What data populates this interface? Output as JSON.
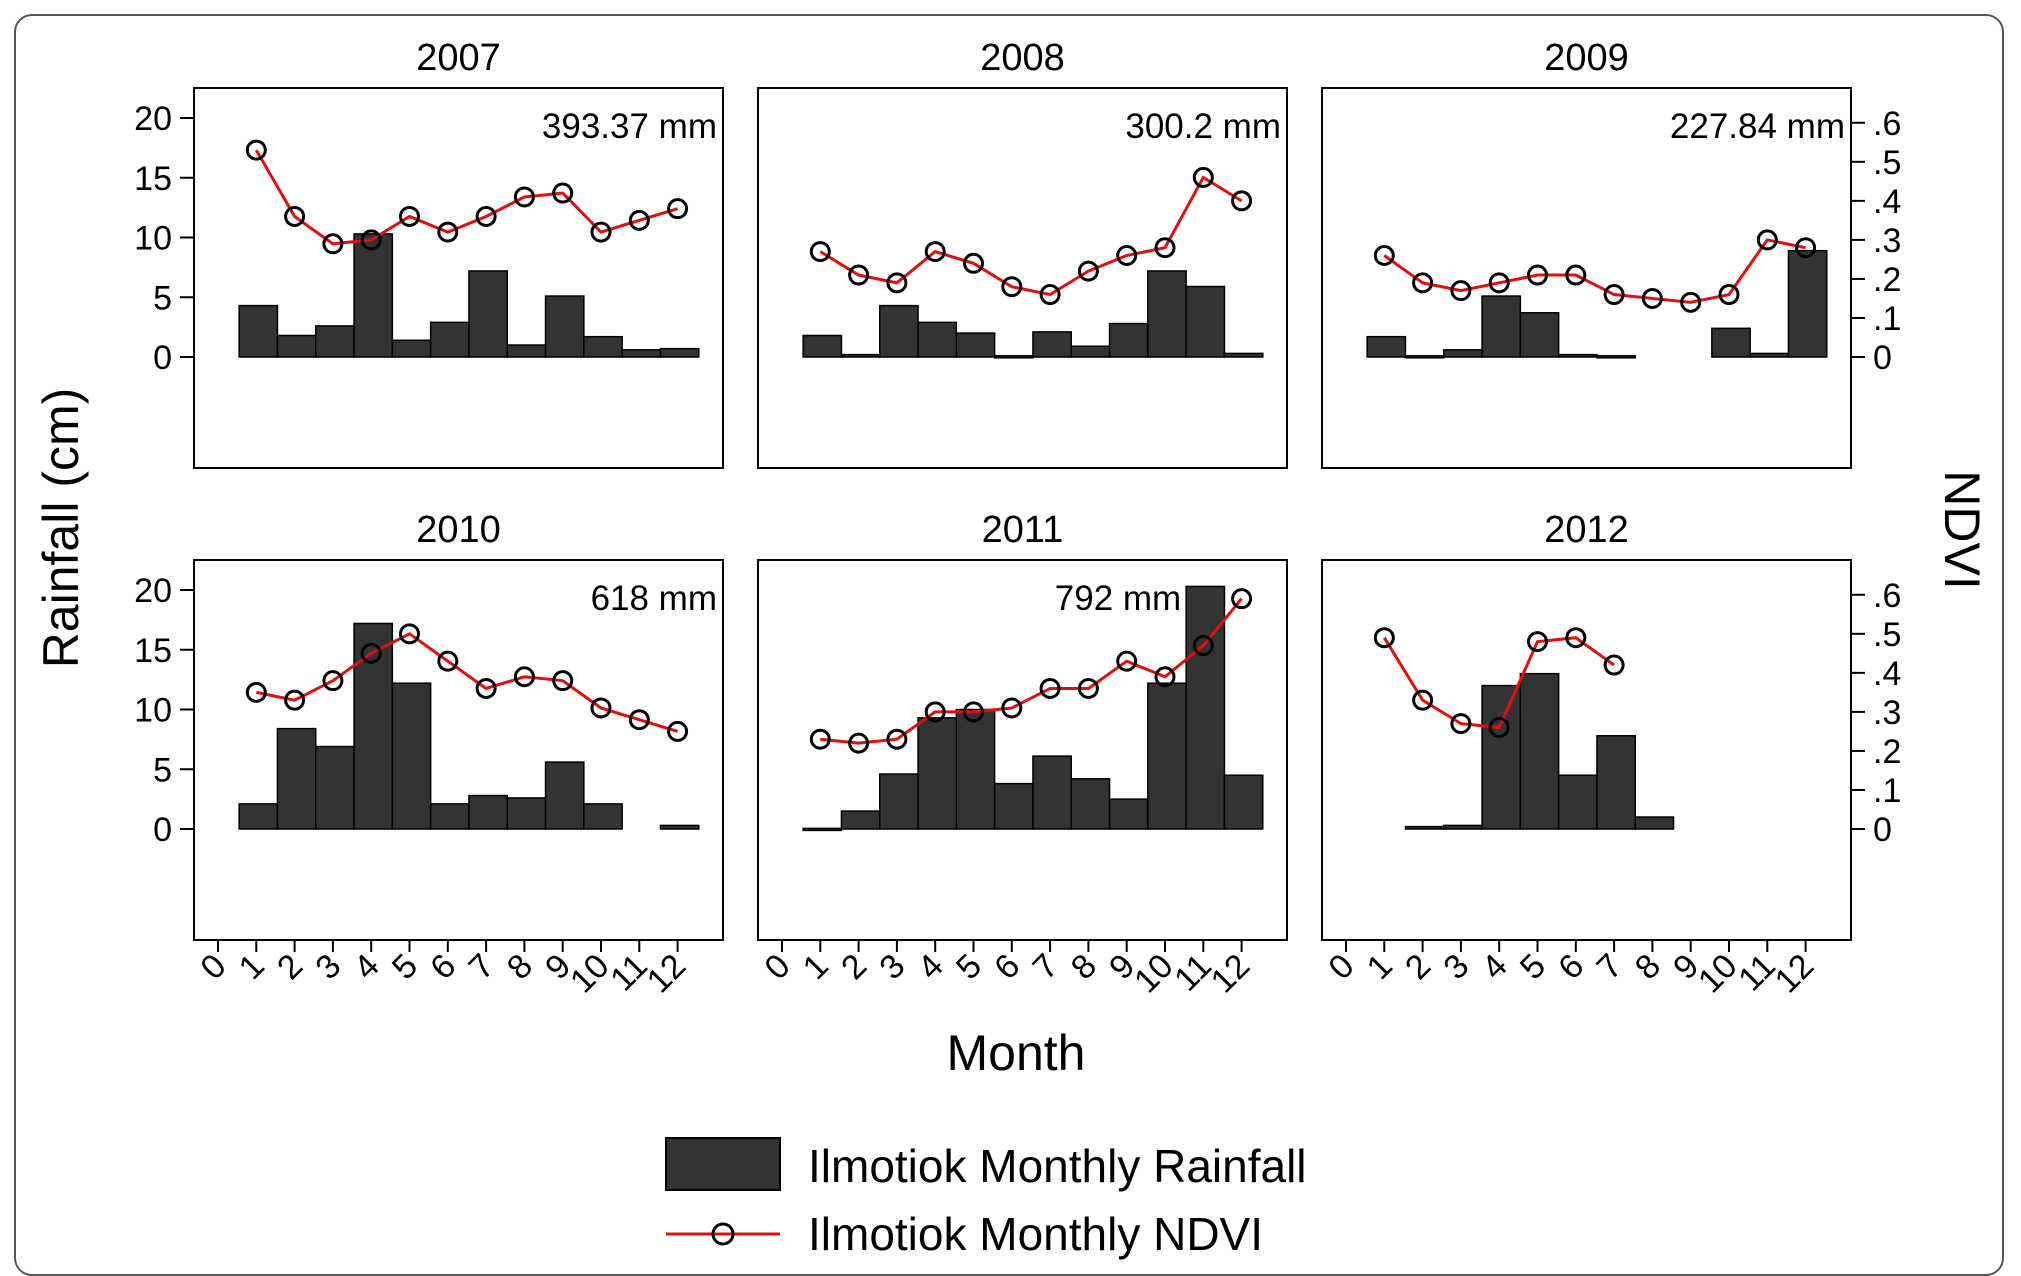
{
  "figure": {
    "y_left_label": "Rainfall (cm)",
    "y_right_label": "NDVI",
    "x_label": "Month",
    "legend": {
      "rainfall_label": "Ilmotiok Monthly Rainfall",
      "ndvi_label": "Ilmotiok Monthly NDVI"
    }
  },
  "colors": {
    "bar": "#333333",
    "line": "#e01010",
    "marker_edge": "#000000"
  },
  "chart_data": [
    {
      "type": "bar",
      "title": "2007",
      "annotation": "393.37 mm",
      "xlim": [
        0,
        12
      ],
      "ylim": [
        0,
        20
      ],
      "y2lim": [
        0,
        0.6
      ],
      "x_ticks": [
        "0",
        "1",
        "2",
        "3",
        "4",
        "5",
        "6",
        "7",
        "8",
        "9",
        "10",
        "11",
        "12"
      ],
      "y_ticks": [
        "0",
        "5",
        "10",
        "15",
        "20"
      ],
      "y2_ticks": [
        "0",
        ".1",
        ".2",
        ".3",
        ".4",
        ".5",
        ".6"
      ],
      "series": [
        {
          "name": "Ilmotiok Monthly Rainfall",
          "axis": "left",
          "type": "bar",
          "x": [
            1,
            2,
            3,
            4,
            5,
            6,
            7,
            8,
            9,
            10,
            11,
            12
          ],
          "values": [
            4.3,
            1.8,
            2.6,
            10.3,
            1.4,
            2.9,
            7.2,
            1.0,
            5.1,
            1.7,
            0.6,
            0.7
          ]
        },
        {
          "name": "Ilmotiok Monthly NDVI",
          "axis": "right",
          "type": "line",
          "x": [
            1,
            2,
            3,
            4,
            5,
            6,
            7,
            8,
            9,
            10,
            11,
            12
          ],
          "values": [
            0.53,
            0.36,
            0.29,
            0.3,
            0.36,
            0.32,
            0.36,
            0.41,
            0.42,
            0.32,
            0.35,
            0.38
          ]
        }
      ]
    },
    {
      "type": "bar",
      "title": "2008",
      "annotation": "300.2 mm",
      "xlim": [
        0,
        12
      ],
      "ylim": [
        0,
        20
      ],
      "y2lim": [
        0,
        0.6
      ],
      "x_ticks": [
        "0",
        "1",
        "2",
        "3",
        "4",
        "5",
        "6",
        "7",
        "8",
        "9",
        "10",
        "11",
        "12"
      ],
      "y_ticks": [
        "0",
        "5",
        "10",
        "15",
        "20"
      ],
      "y2_ticks": [
        "0",
        ".1",
        ".2",
        ".3",
        ".4",
        ".5",
        ".6"
      ],
      "series": [
        {
          "name": "Ilmotiok Monthly Rainfall",
          "axis": "left",
          "type": "bar",
          "x": [
            1,
            2,
            3,
            4,
            5,
            6,
            7,
            8,
            9,
            10,
            11,
            12
          ],
          "values": [
            1.8,
            0.2,
            4.3,
            2.9,
            2.0,
            0.1,
            2.1,
            0.9,
            2.8,
            7.2,
            5.9,
            0.3
          ]
        },
        {
          "name": "Ilmotiok Monthly NDVI",
          "axis": "right",
          "type": "line",
          "x": [
            1,
            2,
            3,
            4,
            5,
            6,
            7,
            8,
            9,
            10,
            11,
            12
          ],
          "values": [
            0.27,
            0.21,
            0.19,
            0.27,
            0.24,
            0.18,
            0.16,
            0.22,
            0.26,
            0.28,
            0.46,
            0.4
          ]
        }
      ]
    },
    {
      "type": "bar",
      "title": "2009",
      "annotation": "227.84 mm",
      "xlim": [
        0,
        12
      ],
      "ylim": [
        0,
        20
      ],
      "y2lim": [
        0,
        0.6
      ],
      "x_ticks": [
        "0",
        "1",
        "2",
        "3",
        "4",
        "5",
        "6",
        "7",
        "8",
        "9",
        "10",
        "11",
        "12"
      ],
      "y_ticks": [
        "0",
        "5",
        "10",
        "15",
        "20"
      ],
      "y2_ticks": [
        "0",
        ".1",
        ".2",
        ".3",
        ".4",
        ".5",
        ".6"
      ],
      "series": [
        {
          "name": "Ilmotiok Monthly Rainfall",
          "axis": "left",
          "type": "bar",
          "x": [
            1,
            2,
            3,
            4,
            5,
            6,
            7,
            8,
            9,
            10,
            11,
            12
          ],
          "values": [
            1.7,
            0.1,
            0.6,
            5.1,
            3.7,
            0.2,
            0.1,
            0,
            0,
            2.4,
            0.3,
            8.9
          ]
        },
        {
          "name": "Ilmotiok Monthly NDVI",
          "axis": "right",
          "type": "line",
          "x": [
            1,
            2,
            3,
            4,
            5,
            6,
            7,
            8,
            9,
            10,
            11,
            12
          ],
          "values": [
            0.26,
            0.19,
            0.17,
            0.19,
            0.21,
            0.21,
            0.16,
            0.15,
            0.14,
            0.16,
            0.3,
            0.28
          ]
        }
      ]
    },
    {
      "type": "bar",
      "title": "2010",
      "annotation": "618 mm",
      "xlim": [
        0,
        12
      ],
      "ylim": [
        0,
        20
      ],
      "y2lim": [
        0,
        0.6
      ],
      "x_ticks": [
        "0",
        "1",
        "2",
        "3",
        "4",
        "5",
        "6",
        "7",
        "8",
        "9",
        "10",
        "11",
        "12"
      ],
      "y_ticks": [
        "0",
        "5",
        "10",
        "15",
        "20"
      ],
      "y2_ticks": [
        "0",
        ".1",
        ".2",
        ".3",
        ".4",
        ".5",
        ".6"
      ],
      "series": [
        {
          "name": "Ilmotiok Monthly Rainfall",
          "axis": "left",
          "type": "bar",
          "x": [
            1,
            2,
            3,
            4,
            5,
            6,
            7,
            8,
            9,
            10,
            11,
            12
          ],
          "values": [
            2.1,
            8.4,
            6.9,
            17.2,
            12.2,
            2.1,
            2.8,
            2.6,
            5.6,
            2.1,
            0,
            0.3
          ]
        },
        {
          "name": "Ilmotiok Monthly NDVI",
          "axis": "right",
          "type": "line",
          "x": [
            1,
            2,
            3,
            4,
            5,
            6,
            7,
            8,
            9,
            10,
            11,
            12
          ],
          "values": [
            0.35,
            0.33,
            0.38,
            0.45,
            0.5,
            0.43,
            0.36,
            0.39,
            0.38,
            0.31,
            0.28,
            0.25
          ]
        }
      ]
    },
    {
      "type": "bar",
      "title": "2011",
      "annotation": "792 mm",
      "xlim": [
        0,
        12
      ],
      "ylim": [
        0,
        20
      ],
      "y2lim": [
        0,
        0.6
      ],
      "x_ticks": [
        "0",
        "1",
        "2",
        "3",
        "4",
        "5",
        "6",
        "7",
        "8",
        "9",
        "10",
        "11",
        "12"
      ],
      "y_ticks": [
        "0",
        "5",
        "10",
        "15",
        "20"
      ],
      "y2_ticks": [
        "0",
        ".1",
        ".2",
        ".3",
        ".4",
        ".5",
        ".6"
      ],
      "series": [
        {
          "name": "Ilmotiok Monthly Rainfall",
          "axis": "left",
          "type": "bar",
          "x": [
            1,
            2,
            3,
            4,
            5,
            6,
            7,
            8,
            9,
            10,
            11,
            12
          ],
          "values": [
            0.05,
            1.5,
            4.6,
            9.3,
            10.0,
            3.8,
            6.1,
            4.2,
            2.5,
            12.2,
            20.3,
            4.5
          ]
        },
        {
          "name": "Ilmotiok Monthly NDVI",
          "axis": "right",
          "type": "line",
          "x": [
            1,
            2,
            3,
            4,
            5,
            6,
            7,
            8,
            9,
            10,
            11,
            12
          ],
          "values": [
            0.23,
            0.22,
            0.23,
            0.3,
            0.3,
            0.31,
            0.36,
            0.36,
            0.43,
            0.39,
            0.47,
            0.59
          ]
        }
      ]
    },
    {
      "type": "bar",
      "title": "2012",
      "annotation": "",
      "xlim": [
        0,
        12
      ],
      "ylim": [
        0,
        20
      ],
      "y2lim": [
        0,
        0.6
      ],
      "x_ticks": [
        "0",
        "1",
        "2",
        "3",
        "4",
        "5",
        "6",
        "7",
        "8",
        "9",
        "10",
        "11",
        "12"
      ],
      "y_ticks": [
        "0",
        "5",
        "10",
        "15",
        "20"
      ],
      "y2_ticks": [
        "0",
        ".1",
        ".2",
        ".3",
        ".4",
        ".5",
        ".6"
      ],
      "series": [
        {
          "name": "Ilmotiok Monthly Rainfall",
          "axis": "left",
          "type": "bar",
          "x": [
            1,
            2,
            3,
            4,
            5,
            6,
            7,
            8,
            9,
            10,
            11,
            12
          ],
          "values": [
            0,
            0.2,
            0.3,
            12.0,
            13.0,
            4.5,
            7.8,
            1.0,
            0,
            0,
            0,
            0
          ]
        },
        {
          "name": "Ilmotiok Monthly NDVI",
          "axis": "right",
          "type": "line",
          "x": [
            1,
            2,
            3,
            4,
            5,
            6,
            7
          ],
          "values": [
            0.49,
            0.33,
            0.27,
            0.26,
            0.48,
            0.49,
            0.42
          ]
        }
      ]
    }
  ]
}
